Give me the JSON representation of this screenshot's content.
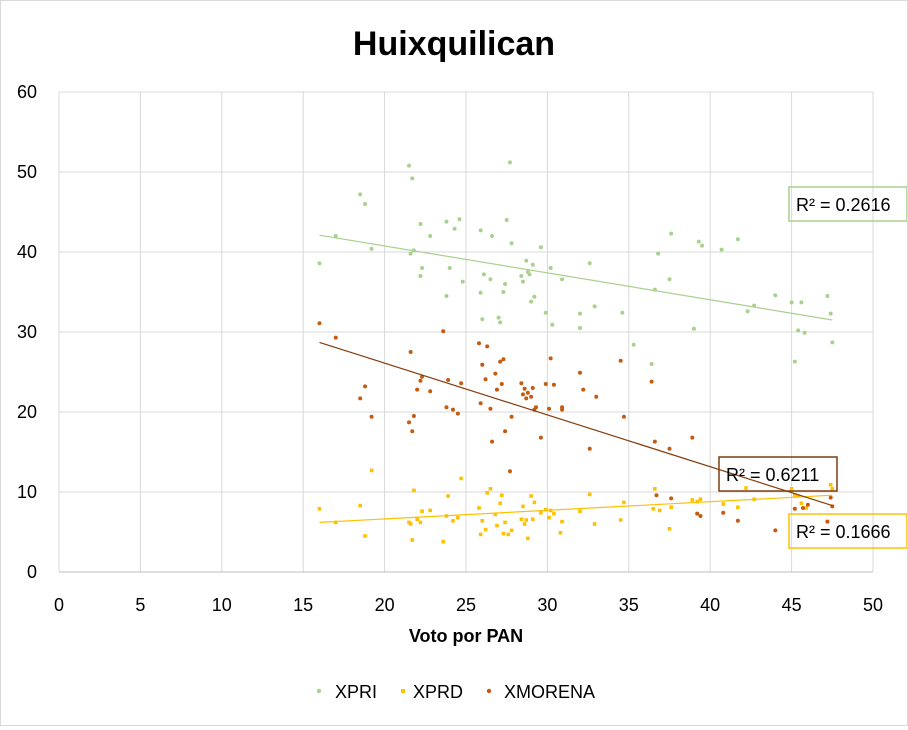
{
  "chart_data": {
    "type": "scatter",
    "title": "Huixquilican",
    "xlabel": "Voto por PAN",
    "ylabel": "",
    "xlim": [
      0,
      50
    ],
    "ylim": [
      0,
      60
    ],
    "xticks": [
      0,
      5,
      10,
      15,
      20,
      25,
      30,
      35,
      40,
      45,
      50
    ],
    "yticks": [
      0,
      10,
      20,
      30,
      40,
      50,
      60
    ],
    "grid": true,
    "legend_position": "bottom",
    "series": [
      {
        "name": "XPRI",
        "color": "#a9d18e",
        "marker": "dot",
        "r2_label": "R² = 0.2616",
        "trend": [
          [
            16,
            42.1
          ],
          [
            47.5,
            31.5
          ]
        ],
        "points": [
          [
            16,
            38.6
          ],
          [
            17,
            42.0
          ],
          [
            18.5,
            47.2
          ],
          [
            18.8,
            46.0
          ],
          [
            19.2,
            40.4
          ],
          [
            21.5,
            50.8
          ],
          [
            21.7,
            49.2
          ],
          [
            21.8,
            40.2
          ],
          [
            21.6,
            39.8
          ],
          [
            22.2,
            43.5
          ],
          [
            22.3,
            38.0
          ],
          [
            22.2,
            37.0
          ],
          [
            22.8,
            42.0
          ],
          [
            23.8,
            43.8
          ],
          [
            23.8,
            34.5
          ],
          [
            24.0,
            38.0
          ],
          [
            24.3,
            42.9
          ],
          [
            24.6,
            44.1
          ],
          [
            24.8,
            36.3
          ],
          [
            25.9,
            42.7
          ],
          [
            26.1,
            37.2
          ],
          [
            25.9,
            34.9
          ],
          [
            26.0,
            31.6
          ],
          [
            26.5,
            36.6
          ],
          [
            26.6,
            42.0
          ],
          [
            27.0,
            31.8
          ],
          [
            27.1,
            31.2
          ],
          [
            27.3,
            35.0
          ],
          [
            27.4,
            36.0
          ],
          [
            27.5,
            44.0
          ],
          [
            27.7,
            51.2
          ],
          [
            27.8,
            41.1
          ],
          [
            28.4,
            37.0
          ],
          [
            28.5,
            36.3
          ],
          [
            28.7,
            38.9
          ],
          [
            28.8,
            37.5
          ],
          [
            28.9,
            37.2
          ],
          [
            29.0,
            33.8
          ],
          [
            29.1,
            38.4
          ],
          [
            29.2,
            34.4
          ],
          [
            29.6,
            40.6
          ],
          [
            29.9,
            32.4
          ],
          [
            30.2,
            38.0
          ],
          [
            30.3,
            30.9
          ],
          [
            30.9,
            36.6
          ],
          [
            32.0,
            32.3
          ],
          [
            32.0,
            30.5
          ],
          [
            32.6,
            38.6
          ],
          [
            32.9,
            33.2
          ],
          [
            34.6,
            32.4
          ],
          [
            35.3,
            28.4
          ],
          [
            36.4,
            26.0
          ],
          [
            36.8,
            39.8
          ],
          [
            36.6,
            35.3
          ],
          [
            37.5,
            36.6
          ],
          [
            37.6,
            42.3
          ],
          [
            39.0,
            30.4
          ],
          [
            39.3,
            41.3
          ],
          [
            39.5,
            40.8
          ],
          [
            40.7,
            40.3
          ],
          [
            41.7,
            41.6
          ],
          [
            42.3,
            32.6
          ],
          [
            42.7,
            33.3
          ],
          [
            44.0,
            34.6
          ],
          [
            45.0,
            33.7
          ],
          [
            45.2,
            26.3
          ],
          [
            45.4,
            30.2
          ],
          [
            45.6,
            33.7
          ],
          [
            45.8,
            29.9
          ],
          [
            47.2,
            34.5
          ],
          [
            47.4,
            32.3
          ],
          [
            47.5,
            28.7
          ]
        ]
      },
      {
        "name": "XPRD",
        "color": "#ffc000",
        "marker": "square",
        "r2_label": "R² = 0.1666",
        "trend": [
          [
            16,
            6.2
          ],
          [
            47.5,
            9.6
          ]
        ],
        "points": [
          [
            16,
            7.9
          ],
          [
            17.0,
            6.2
          ],
          [
            18.5,
            8.3
          ],
          [
            18.8,
            4.5
          ],
          [
            19.2,
            12.7
          ],
          [
            21.5,
            6.2
          ],
          [
            21.6,
            6.0
          ],
          [
            21.7,
            4.0
          ],
          [
            21.8,
            10.2
          ],
          [
            22.0,
            6.6
          ],
          [
            22.2,
            6.2
          ],
          [
            22.3,
            7.6
          ],
          [
            22.8,
            7.7
          ],
          [
            23.6,
            3.8
          ],
          [
            23.8,
            7.0
          ],
          [
            23.9,
            9.5
          ],
          [
            24.2,
            6.4
          ],
          [
            24.5,
            6.8
          ],
          [
            24.7,
            11.7
          ],
          [
            25.8,
            8.0
          ],
          [
            25.9,
            4.7
          ],
          [
            26.0,
            6.4
          ],
          [
            26.2,
            5.3
          ],
          [
            26.3,
            9.9
          ],
          [
            26.5,
            10.4
          ],
          [
            26.8,
            7.2
          ],
          [
            26.9,
            5.8
          ],
          [
            27.1,
            8.6
          ],
          [
            27.2,
            9.6
          ],
          [
            27.3,
            4.8
          ],
          [
            27.4,
            6.2
          ],
          [
            27.6,
            4.7
          ],
          [
            27.8,
            5.2
          ],
          [
            28.4,
            6.6
          ],
          [
            28.5,
            8.2
          ],
          [
            28.6,
            6.0
          ],
          [
            28.7,
            6.5
          ],
          [
            28.8,
            4.2
          ],
          [
            29.0,
            9.5
          ],
          [
            29.1,
            6.6
          ],
          [
            29.2,
            8.7
          ],
          [
            29.6,
            7.4
          ],
          [
            29.9,
            7.8
          ],
          [
            30.1,
            6.8
          ],
          [
            30.2,
            7.7
          ],
          [
            30.4,
            7.3
          ],
          [
            30.8,
            4.9
          ],
          [
            30.9,
            6.3
          ],
          [
            32.0,
            7.6
          ],
          [
            32.6,
            9.7
          ],
          [
            32.9,
            6.0
          ],
          [
            34.5,
            6.5
          ],
          [
            34.7,
            8.7
          ],
          [
            36.5,
            7.9
          ],
          [
            36.6,
            10.4
          ],
          [
            36.9,
            7.7
          ],
          [
            37.5,
            5.4
          ],
          [
            37.6,
            8.1
          ],
          [
            38.9,
            9.0
          ],
          [
            39.2,
            8.8
          ],
          [
            39.4,
            9.1
          ],
          [
            40.8,
            8.5
          ],
          [
            41.7,
            8.1
          ],
          [
            42.2,
            10.5
          ],
          [
            42.7,
            9.1
          ],
          [
            45.0,
            10.4
          ],
          [
            45.2,
            9.6
          ],
          [
            45.4,
            9.5
          ],
          [
            45.6,
            8.6
          ],
          [
            45.9,
            8.0
          ],
          [
            47.2,
            6.3
          ],
          [
            47.4,
            10.9
          ],
          [
            47.5,
            10.4
          ]
        ]
      },
      {
        "name": "XMORENA",
        "color": "#c55a11",
        "marker": "dot",
        "r2_label": "R² = 0.6211",
        "trend": [
          [
            16,
            28.7
          ],
          [
            47.5,
            8.3
          ]
        ],
        "points": [
          [
            16,
            31.1
          ],
          [
            17.0,
            29.3
          ],
          [
            18.5,
            21.7
          ],
          [
            18.8,
            23.2
          ],
          [
            19.2,
            19.4
          ],
          [
            21.5,
            18.7
          ],
          [
            21.6,
            27.5
          ],
          [
            21.7,
            17.6
          ],
          [
            21.8,
            19.5
          ],
          [
            22.0,
            22.8
          ],
          [
            22.2,
            23.9
          ],
          [
            22.3,
            24.4
          ],
          [
            22.8,
            22.6
          ],
          [
            23.6,
            30.1
          ],
          [
            23.8,
            20.6
          ],
          [
            23.9,
            24.0
          ],
          [
            24.2,
            20.3
          ],
          [
            24.5,
            19.8
          ],
          [
            24.7,
            23.6
          ],
          [
            25.8,
            28.6
          ],
          [
            25.9,
            21.1
          ],
          [
            26.0,
            25.9
          ],
          [
            26.2,
            24.1
          ],
          [
            26.3,
            28.2
          ],
          [
            26.5,
            20.4
          ],
          [
            26.6,
            16.3
          ],
          [
            26.8,
            24.8
          ],
          [
            26.9,
            22.8
          ],
          [
            27.1,
            26.3
          ],
          [
            27.2,
            23.5
          ],
          [
            27.3,
            26.6
          ],
          [
            27.4,
            17.6
          ],
          [
            27.7,
            12.6
          ],
          [
            27.8,
            19.4
          ],
          [
            28.4,
            23.6
          ],
          [
            28.5,
            22.2
          ],
          [
            28.6,
            22.9
          ],
          [
            28.7,
            21.7
          ],
          [
            28.8,
            22.4
          ],
          [
            29.0,
            21.9
          ],
          [
            29.1,
            23.0
          ],
          [
            29.2,
            20.3
          ],
          [
            29.3,
            20.6
          ],
          [
            29.6,
            16.8
          ],
          [
            29.9,
            23.5
          ],
          [
            30.1,
            20.4
          ],
          [
            30.2,
            26.7
          ],
          [
            30.4,
            23.4
          ],
          [
            30.9,
            20.6
          ],
          [
            30.9,
            20.3
          ],
          [
            32.0,
            24.9
          ],
          [
            32.2,
            22.8
          ],
          [
            32.6,
            15.4
          ],
          [
            33.0,
            21.9
          ],
          [
            34.5,
            26.4
          ],
          [
            34.7,
            19.4
          ],
          [
            36.4,
            23.8
          ],
          [
            36.6,
            16.3
          ],
          [
            36.7,
            9.6
          ],
          [
            37.5,
            15.4
          ],
          [
            37.6,
            9.2
          ],
          [
            38.9,
            16.8
          ],
          [
            39.2,
            7.3
          ],
          [
            39.4,
            7.0
          ],
          [
            40.8,
            7.4
          ],
          [
            41.7,
            6.4
          ],
          [
            44.0,
            5.2
          ],
          [
            45.2,
            7.9
          ],
          [
            45.7,
            8.0
          ],
          [
            46.0,
            8.4
          ],
          [
            47.2,
            6.3
          ],
          [
            47.4,
            9.3
          ],
          [
            47.5,
            8.2
          ]
        ]
      }
    ]
  }
}
